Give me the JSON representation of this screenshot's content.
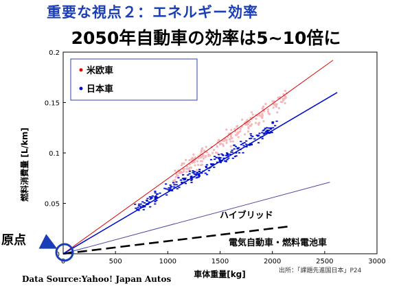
{
  "header": {
    "title": "重要な視点２：エネルギー効率"
  },
  "chart_data": {
    "type": "scatter",
    "title": "2050年自動車の効率は5~10倍に",
    "xlabel": "車体重量[kg]",
    "ylabel": "燃料消費量 [L/km]",
    "xlim": [
      0,
      3000
    ],
    "ylim": [
      0,
      0.2
    ],
    "x_ticks": [
      "0",
      "500",
      "1000",
      "1500",
      "2000",
      "2500",
      "3000"
    ],
    "y_ticks": [
      "0",
      "0.05",
      "0.1",
      "0.15",
      "0.2"
    ],
    "legend": {
      "placement": "top-left"
    },
    "series": [
      {
        "name": "米欧車",
        "color": "#e00000",
        "cloud_color": "#f4b8bc",
        "trend": [
          [
            0,
            0.0
          ],
          [
            2580,
            0.192
          ]
        ],
        "cloud": {
          "x_min": 1050,
          "x_max": 2150,
          "x_start_center": 1050,
          "slope": 7.35e-05,
          "y_at_start": 0.076,
          "spread": 0.012,
          "n": 220
        }
      },
      {
        "name": "日本車",
        "color": "#0010c8",
        "cloud_color": "#0010c8",
        "trend": [
          [
            0,
            0.0
          ],
          [
            2620,
            0.16
          ]
        ],
        "cloud": {
          "x_min": 680,
          "x_max": 2050,
          "x_start_center": 700,
          "slope": 6.12e-05,
          "y_at_start": 0.045,
          "spread": 0.009,
          "n": 230
        }
      }
    ],
    "annotations": [
      {
        "label": "ハイブリッド",
        "line": [
          [
            0,
            0.0
          ],
          [
            2550,
            0.071
          ]
        ],
        "color": "#4a4aa0",
        "dashed": false
      },
      {
        "label": "電気自動車・燃料電池車",
        "line": [
          [
            0,
            0.0
          ],
          [
            2150,
            0.027
          ]
        ],
        "color": "#000000",
        "dashed": true
      }
    ]
  },
  "origin_label": "原点",
  "source": "Data Source:Yahoo! Japan Autos",
  "citation": "出所：「課題先進国日本」P24"
}
